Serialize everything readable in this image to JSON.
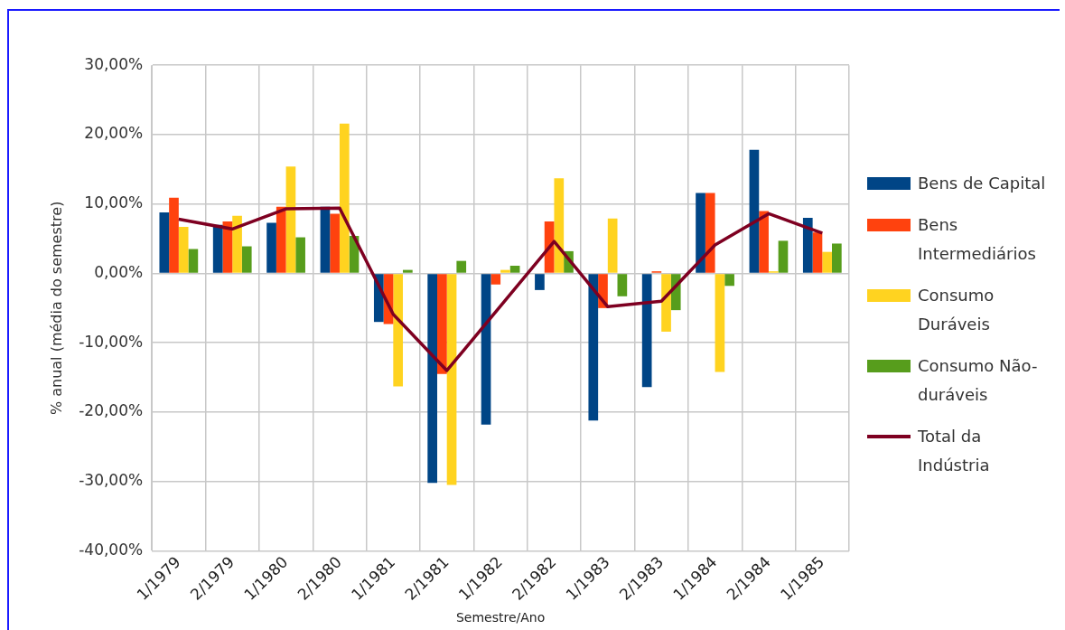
{
  "chart_data": {
    "type": "bar",
    "xlabel": "Semestre/Ano",
    "ylabel": "% anual (média do semestre)",
    "categories": [
      "1/1979",
      "2/1979",
      "1/1980",
      "2/1980",
      "1/1981",
      "2/1981",
      "1/1982",
      "2/1982",
      "1/1983",
      "2/1983",
      "1/1984",
      "2/1984",
      "1/1985"
    ],
    "series": [
      {
        "name": "Bens de Capital",
        "color": "#004586",
        "values": [
          8.8,
          7.0,
          7.3,
          9.6,
          -7.0,
          -30.2,
          -21.8,
          -2.4,
          -21.2,
          -16.4,
          11.6,
          17.8,
          8.0
        ]
      },
      {
        "name": "Bens Intermediários",
        "color": "#ff420e",
        "values": [
          10.9,
          7.5,
          9.6,
          8.6,
          -7.3,
          -14.5,
          -1.6,
          7.5,
          -5.0,
          0.3,
          11.6,
          9.0,
          5.9
        ]
      },
      {
        "name": "Consumo Duráveis",
        "color": "#ffd320",
        "values": [
          6.7,
          8.3,
          15.4,
          21.6,
          -16.3,
          -30.5,
          0.5,
          13.7,
          7.9,
          -8.4,
          -14.2,
          0.3,
          3.1
        ]
      },
      {
        "name": "Consumo Não-duráveis",
        "color": "#579d1c",
        "values": [
          3.5,
          3.9,
          5.2,
          5.4,
          0.5,
          1.8,
          1.1,
          3.2,
          -3.3,
          -5.3,
          -1.8,
          4.7,
          4.3
        ]
      },
      {
        "name": "Total da Indústria",
        "type": "line",
        "color": "#7e0021",
        "values": [
          7.8,
          6.4,
          9.3,
          9.4,
          -5.9,
          -14.0,
          -4.7,
          4.6,
          -4.8,
          -4.0,
          4.1,
          8.6,
          5.8
        ]
      }
    ],
    "ylim": [
      -40,
      30
    ],
    "yticks": [
      {
        "value": -40,
        "label": "-40,00%"
      },
      {
        "value": -30,
        "label": "-30,00%"
      },
      {
        "value": -20,
        "label": "-20,00%"
      },
      {
        "value": -10,
        "label": "-10,00%"
      },
      {
        "value": 0,
        "label": "0,00%"
      },
      {
        "value": 10,
        "label": "10,00%"
      },
      {
        "value": 20,
        "label": "20,00%"
      },
      {
        "value": 30,
        "label": "30,00%"
      }
    ],
    "grid": true,
    "legend": "right",
    "marker": "none"
  }
}
